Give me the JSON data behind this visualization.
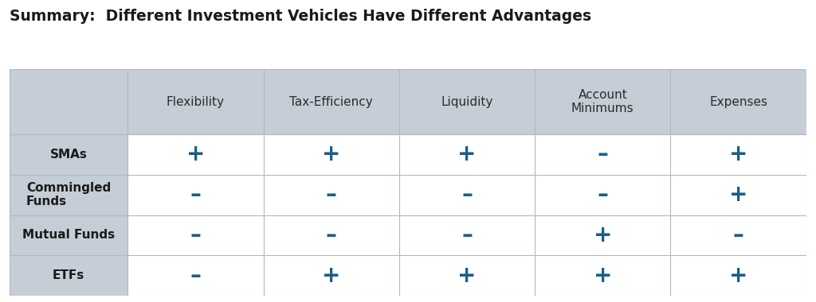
{
  "title": "Summary:  Different Investment Vehicles Have Different Advantages",
  "title_color": "#1a1a1a",
  "title_fontsize": 13.5,
  "title_fontweight": "bold",
  "columns": [
    "Flexibility",
    "Tax-Efficiency",
    "Liquidity",
    "Account\nMinimums",
    "Expenses"
  ],
  "rows": [
    "SMAs",
    "Commingled\nFunds",
    "Mutual Funds",
    "ETFs"
  ],
  "data": [
    [
      "+",
      "+",
      "+",
      "–",
      "+"
    ],
    [
      "–",
      "–",
      "–",
      "–",
      "+"
    ],
    [
      "–",
      "–",
      "–",
      "+",
      "–"
    ],
    [
      "–",
      "+",
      "+",
      "+",
      "+"
    ]
  ],
  "plus_color": "#1b5e8a",
  "minus_color": "#1b5e8a",
  "header_bg": "#c5cdd6",
  "row_label_bg": "#c5cdd6",
  "cell_bg": "#ffffff",
  "grid_color": "#b0b8c1",
  "row_label_fontsize": 11,
  "col_header_fontsize": 11,
  "symbol_fontsize": 20,
  "background_color": "#ffffff"
}
